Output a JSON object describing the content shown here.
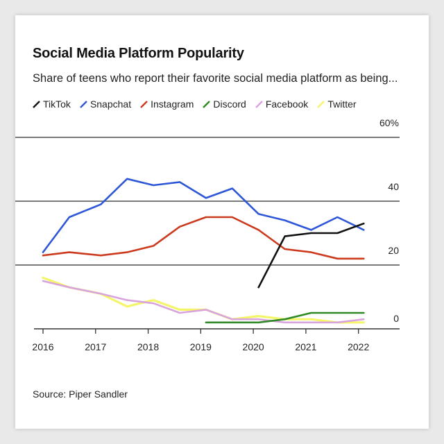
{
  "chart_data": {
    "type": "line",
    "title": "Social Media Platform Popularity",
    "subtitle": "Share of teens who report their favorite social media platform as being...",
    "xlabel": "",
    "ylabel": "",
    "source": "Source: Piper Sandler",
    "x_ticks": [
      "2016",
      "2017",
      "2018",
      "2019",
      "2020",
      "2021",
      "2022"
    ],
    "y_ticks": [
      "0",
      "20",
      "40",
      "60%"
    ],
    "y_tick_values": [
      0,
      20,
      40,
      60
    ],
    "ylim": [
      0,
      60
    ],
    "xlim": [
      2016,
      2022.4
    ],
    "grid": true,
    "legend_position": "top-left",
    "series": [
      {
        "name": "TikTok",
        "color": "#111111",
        "x": [
          2020.1,
          2020.6,
          2021.1,
          2021.6,
          2022.1
        ],
        "y": [
          13,
          29,
          30,
          30,
          33
        ]
      },
      {
        "name": "Snapchat",
        "color": "#2e57d8",
        "x": [
          2016.0,
          2016.5,
          2017.1,
          2017.6,
          2018.1,
          2018.6,
          2019.1,
          2019.6,
          2020.1,
          2020.6,
          2021.1,
          2021.6,
          2022.1
        ],
        "y": [
          24,
          35,
          39,
          47,
          45,
          46,
          41,
          44,
          36,
          34,
          31,
          35,
          31
        ]
      },
      {
        "name": "Instagram",
        "color": "#cc3a1e",
        "x": [
          2016.0,
          2016.5,
          2017.1,
          2017.6,
          2018.1,
          2018.6,
          2019.1,
          2019.6,
          2020.1,
          2020.6,
          2021.1,
          2021.6,
          2022.1
        ],
        "y": [
          23,
          24,
          23,
          24,
          26,
          32,
          35,
          35,
          31,
          25,
          24,
          22,
          22
        ]
      },
      {
        "name": "Discord",
        "color": "#2f8a25",
        "x": [
          2019.1,
          2019.6,
          2020.1,
          2020.6,
          2021.1,
          2021.6,
          2022.1
        ],
        "y": [
          2,
          2,
          2,
          3,
          5,
          5,
          5
        ]
      },
      {
        "name": "Facebook",
        "color": "#d9a3dd",
        "x": [
          2016.0,
          2016.5,
          2017.1,
          2017.6,
          2018.1,
          2018.6,
          2019.1,
          2019.6,
          2020.1,
          2020.6,
          2021.1,
          2021.6,
          2022.1
        ],
        "y": [
          15,
          13,
          11,
          9,
          8,
          5,
          6,
          3,
          3,
          2,
          2,
          2,
          3
        ]
      },
      {
        "name": "Twitter",
        "color": "#f5f56a",
        "x": [
          2016.0,
          2016.5,
          2017.1,
          2017.6,
          2018.1,
          2018.6,
          2019.1,
          2019.6,
          2020.1,
          2020.6,
          2021.1,
          2021.6,
          2022.1
        ],
        "y": [
          16,
          13,
          11,
          7,
          9,
          6,
          6,
          3,
          4,
          3,
          3,
          2,
          2
        ]
      }
    ]
  }
}
